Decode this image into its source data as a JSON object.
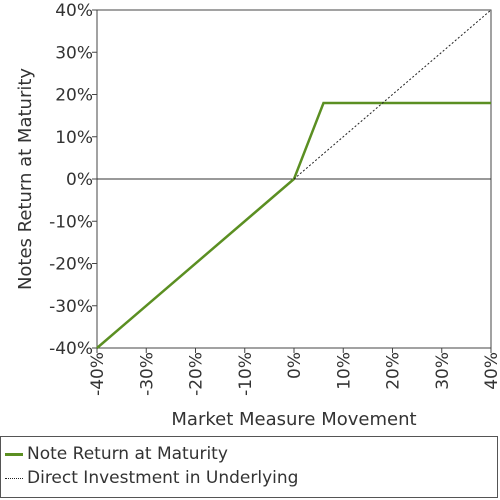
{
  "chart_data": {
    "type": "line",
    "xlabel": "Market Measure Movement",
    "ylabel": "Notes Return at Maturity",
    "xlim": [
      -40,
      40
    ],
    "ylim": [
      -40,
      40
    ],
    "x_ticks": [
      "-40%",
      "-30%",
      "-20%",
      "-10%",
      "0%",
      "10%",
      "20%",
      "30%",
      "40%"
    ],
    "y_ticks": [
      "40%",
      "30%",
      "20%",
      "10%",
      "0%",
      "-10%",
      "-20%",
      "-30%",
      "-40%"
    ],
    "x_tick_values": [
      -40,
      -30,
      -20,
      -10,
      0,
      10,
      20,
      30,
      40
    ],
    "y_tick_values": [
      40,
      30,
      20,
      10,
      0,
      -10,
      -20,
      -30,
      -40
    ],
    "series": [
      {
        "name": "Note Return at Maturity",
        "color": "#5b8f22",
        "style": "solid",
        "x": [
          -40,
          0,
          6,
          40
        ],
        "y": [
          -40,
          0,
          18,
          18
        ]
      },
      {
        "name": "Direct Investment in Underlying",
        "color": "#222222",
        "style": "dotted",
        "x": [
          0,
          40
        ],
        "y": [
          0,
          40
        ]
      }
    ],
    "legend_position": "bottom",
    "grid": false
  }
}
